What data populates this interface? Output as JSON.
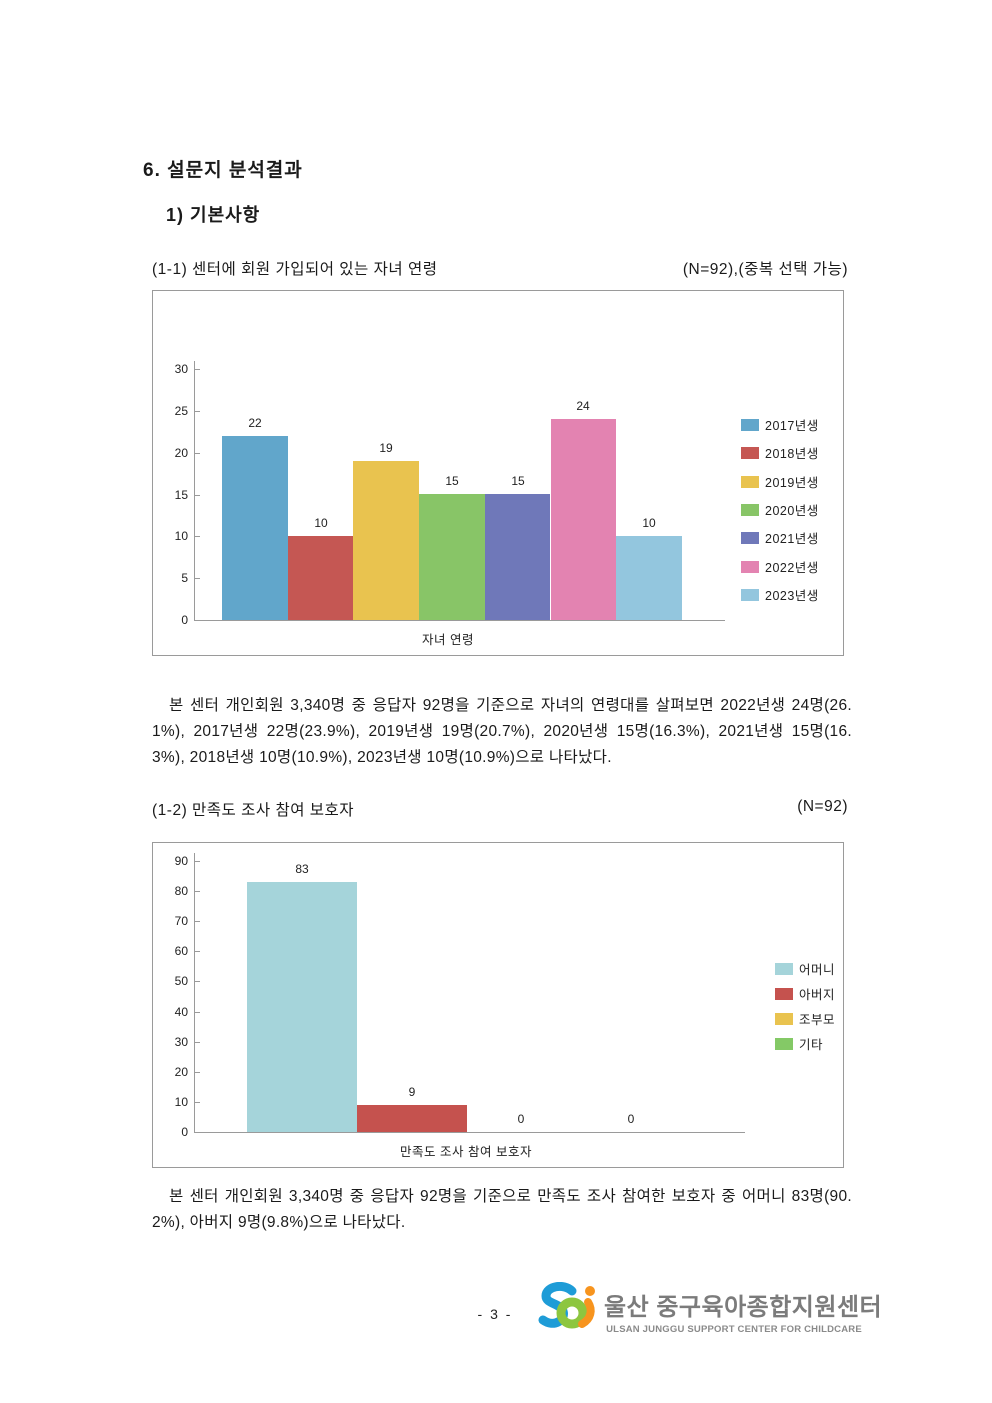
{
  "page": {
    "title": "6. 설문지 분석결과",
    "section": "1) 기본사항",
    "footer": {
      "page_number": "- 3 -",
      "logo_main": "울산 중구육아종합지원센터",
      "logo_sub": "ULSAN JUNGGU SUPPORT CENTER FOR CHILDCARE"
    }
  },
  "question1": {
    "label": "(1-1) 센터에 회원 가입되어 있는 자녀 연령",
    "note": "(N=92),(중복 선택 가능)",
    "analysis": "본 센터 개인회원 3,340명 중 응답자 92명을 기준으로 자녀의 연령대를 살펴보면 2022년생 24명(26.1%), 2017년생 22명(23.9%), 2019년생 19명(20.7%), 2020년생 15명(16.3%), 2021년생 15명(16.3%), 2018년생 10명(10.9%), 2023년생 10명(10.9%)으로 나타났다."
  },
  "question2": {
    "label": "(1-2) 만족도 조사 참여 보호자",
    "note": "(N=92)",
    "analysis": "본 센터 개인회원 3,340명 중 응답자 92명을 기준으로 만족도 조사 참여한 보호자 중 어머니 83명(90.2%), 아버지 9명(9.8%)으로 나타났다."
  },
  "chart_data": [
    {
      "type": "bar",
      "title": "",
      "categories": [
        "2017년생",
        "2018년생",
        "2019년생",
        "2020년생",
        "2021년생",
        "2022년생",
        "2023년생"
      ],
      "values": [
        22,
        10,
        19,
        15,
        15,
        24,
        10
      ],
      "colors": [
        "#61A6CB",
        "#C55753",
        "#E9C34F",
        "#88C567",
        "#6F78B9",
        "#E383B1",
        "#93C6DE"
      ],
      "xlabel": "자녀 연령",
      "ylabel": "",
      "ylim": [
        0,
        30
      ],
      "ytick_step": 5,
      "grid": false,
      "legend_position": "right",
      "value_labels": true
    },
    {
      "type": "bar",
      "title": "",
      "categories": [
        "어머니",
        "아버지",
        "조부모",
        "기타"
      ],
      "values": [
        83,
        9,
        0,
        0
      ],
      "colors": [
        "#A5D4DA",
        "#C5524E",
        "#E9C34F",
        "#84C966"
      ],
      "xlabel": "만족도 조사 참여 보호자",
      "ylabel": "",
      "ylim": [
        0,
        90
      ],
      "ytick_step": 10,
      "grid": false,
      "legend_position": "right",
      "value_labels": true
    }
  ]
}
